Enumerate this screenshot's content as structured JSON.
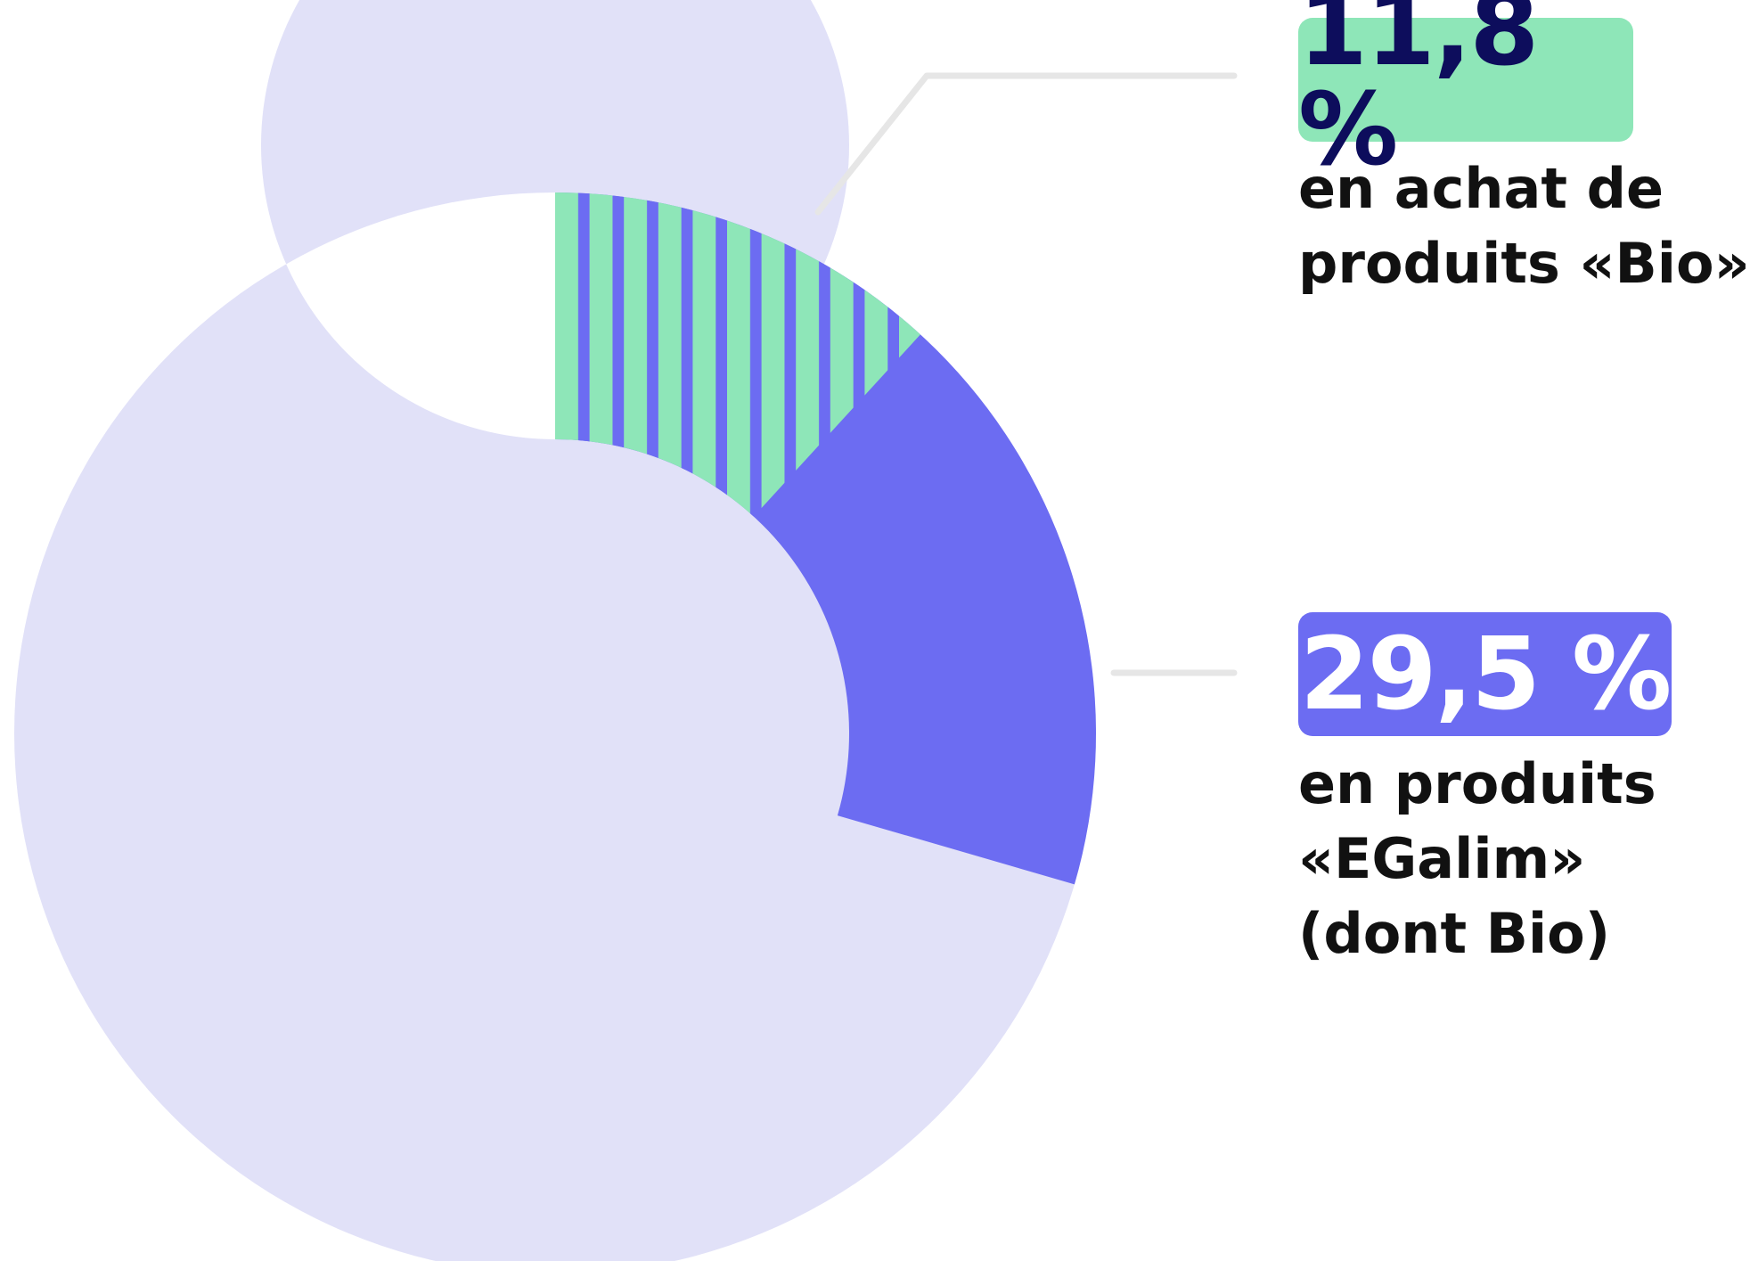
{
  "colors": {
    "background_ring": "#e1e1f8",
    "egalim": "#6c6cf2",
    "bio_stripe_green": "#8ee6b8",
    "bio_stripe_blue": "#6c6cf2",
    "leader_line": "#e6e6e6",
    "bio_badge_text": "#0d0d5c",
    "egalim_badge_text": "#ffffff",
    "label_text": "#111111"
  },
  "chart_data": {
    "type": "donut",
    "total_percent": 100,
    "series": [
      {
        "key": "bio",
        "value": 11.8,
        "label": "11,8 %",
        "description": [
          "en achat de",
          "produits «Bio»"
        ],
        "pattern": "vertical-stripes"
      },
      {
        "key": "egalim",
        "value": 29.5,
        "label": "29,5 %",
        "description": [
          "en produits",
          "«EGalim»",
          "(dont Bio)"
        ],
        "pattern": "solid"
      }
    ]
  },
  "labels": {
    "bio": {
      "value": "11,8 %",
      "line1": "en achat de",
      "line2": "produits «Bio»"
    },
    "egalim": {
      "value": "29,5 %",
      "line1": "en produits",
      "line2": "«EGalim»",
      "line3": "(dont Bio)"
    }
  }
}
